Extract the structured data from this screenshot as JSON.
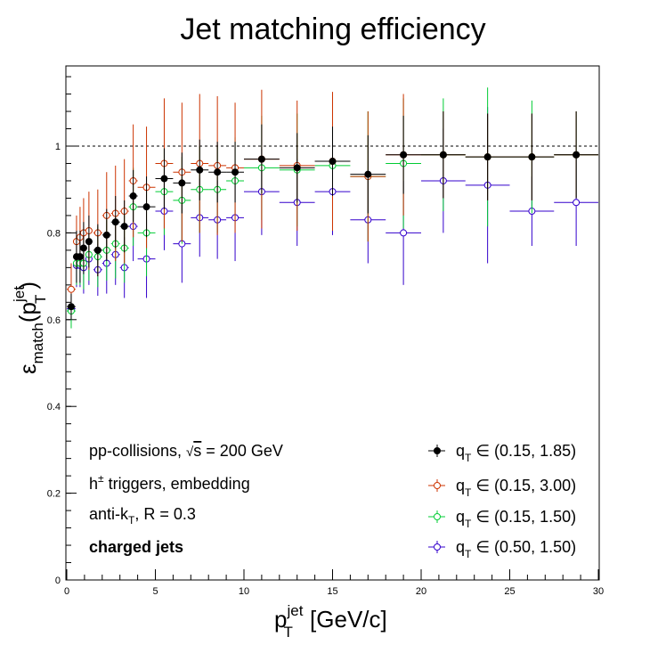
{
  "chart_data": {
    "type": "scatter",
    "title": "Jet matching efficiency",
    "xlabel": {
      "base": "p",
      "sup": "jet",
      "sub": "T",
      "suffix": " [GeV/c]"
    },
    "ylabel": {
      "base": "ε",
      "sub": "match",
      "open": "(p",
      "sup": "jet",
      "sub2": "T",
      "close": ")"
    },
    "xlim": [
      0,
      30
    ],
    "ylim": [
      0,
      1.2
    ],
    "xticks": [
      0,
      5,
      10,
      15,
      20,
      25,
      30
    ],
    "yticks": [
      0,
      0.2,
      0.4,
      0.6,
      0.8,
      1
    ],
    "xtick_labels": [
      "0",
      "5",
      "10",
      "15",
      "20",
      "25",
      "30"
    ],
    "ytick_labels": [
      "0",
      "0.2",
      "0.4",
      "0.6",
      "0.8",
      "1"
    ],
    "reference_line": {
      "y": 1,
      "style": "dashed"
    },
    "annotations": [
      {
        "text": "pp-collisions, √s = 200 GeV",
        "parts": [
          "pp-collisions, ",
          "√",
          "s",
          " = 200 GeV"
        ]
      },
      {
        "text": "h± triggers, embedding",
        "parts": [
          "h",
          "±",
          " triggers, embedding"
        ]
      },
      {
        "text": "anti-kT, R = 0.3",
        "parts": [
          "anti-k",
          "T",
          ", R = 0.3"
        ]
      },
      {
        "text": "charged jets",
        "bold": true
      }
    ],
    "legend_position": "bottom-right",
    "series": [
      {
        "name": "qT ∈ (0.15, 1.85)",
        "label_parts": [
          "q",
          "T",
          " ∈ (0.15, 1.85)"
        ],
        "color": "#000000",
        "marker": "filled-circle",
        "points": [
          {
            "x": 0.25,
            "y": 0.63,
            "xerr": 0.25,
            "yerr": 0.03
          },
          {
            "x": 0.55,
            "y": 0.745,
            "xerr": 0.1,
            "yerr": 0.06
          },
          {
            "x": 0.75,
            "y": 0.745,
            "xerr": 0.1,
            "yerr": 0.06
          },
          {
            "x": 0.95,
            "y": 0.765,
            "xerr": 0.1,
            "yerr": 0.06
          },
          {
            "x": 1.25,
            "y": 0.78,
            "xerr": 0.2,
            "yerr": 0.06
          },
          {
            "x": 1.75,
            "y": 0.76,
            "xerr": 0.25,
            "yerr": 0.06
          },
          {
            "x": 2.25,
            "y": 0.795,
            "xerr": 0.25,
            "yerr": 0.06
          },
          {
            "x": 2.75,
            "y": 0.825,
            "xerr": 0.25,
            "yerr": 0.06
          },
          {
            "x": 3.25,
            "y": 0.815,
            "xerr": 0.25,
            "yerr": 0.06
          },
          {
            "x": 3.75,
            "y": 0.885,
            "xerr": 0.25,
            "yerr": 0.06
          },
          {
            "x": 4.5,
            "y": 0.86,
            "xerr": 0.5,
            "yerr": 0.07
          },
          {
            "x": 5.5,
            "y": 0.925,
            "xerr": 0.5,
            "yerr": 0.07
          },
          {
            "x": 6.5,
            "y": 0.915,
            "xerr": 0.5,
            "yerr": 0.07
          },
          {
            "x": 7.5,
            "y": 0.945,
            "xerr": 0.5,
            "yerr": 0.07
          },
          {
            "x": 8.5,
            "y": 0.94,
            "xerr": 0.5,
            "yerr": 0.07
          },
          {
            "x": 9.5,
            "y": 0.94,
            "xerr": 0.5,
            "yerr": 0.07
          },
          {
            "x": 11,
            "y": 0.97,
            "xerr": 1,
            "yerr": 0.08
          },
          {
            "x": 13,
            "y": 0.95,
            "xerr": 1,
            "yerr": 0.08
          },
          {
            "x": 15,
            "y": 0.965,
            "xerr": 1,
            "yerr": 0.08
          },
          {
            "x": 17,
            "y": 0.935,
            "xerr": 1,
            "yerr": 0.09
          },
          {
            "x": 19,
            "y": 0.98,
            "xerr": 1,
            "yerr": 0.09
          },
          {
            "x": 21.25,
            "y": 0.98,
            "xerr": 1.25,
            "yerr": 0.1
          },
          {
            "x": 23.75,
            "y": 0.975,
            "xerr": 1.25,
            "yerr": 0.1
          },
          {
            "x": 26.25,
            "y": 0.975,
            "xerr": 1.25,
            "yerr": 0.1
          },
          {
            "x": 28.75,
            "y": 0.98,
            "xerr": 1.25,
            "yerr": 0.1
          }
        ]
      },
      {
        "name": "qT ∈ (0.15, 3.00)",
        "label_parts": [
          "q",
          "T",
          " ∈ (0.15, 3.00)"
        ],
        "color": "#cc3300",
        "marker": "open-circle",
        "points": [
          {
            "x": 0.25,
            "y": 0.67,
            "xerr": 0.25,
            "yerr": 0.06
          },
          {
            "x": 0.55,
            "y": 0.78,
            "xerr": 0.1,
            "yerr": 0.06
          },
          {
            "x": 0.75,
            "y": 0.79,
            "xerr": 0.1,
            "yerr": 0.07
          },
          {
            "x": 0.95,
            "y": 0.8,
            "xerr": 0.1,
            "yerr": 0.08
          },
          {
            "x": 1.25,
            "y": 0.805,
            "xerr": 0.2,
            "yerr": 0.09
          },
          {
            "x": 1.75,
            "y": 0.8,
            "xerr": 0.25,
            "yerr": 0.1
          },
          {
            "x": 2.25,
            "y": 0.84,
            "xerr": 0.25,
            "yerr": 0.1
          },
          {
            "x": 2.75,
            "y": 0.845,
            "xerr": 0.25,
            "yerr": 0.11
          },
          {
            "x": 3.25,
            "y": 0.85,
            "xerr": 0.25,
            "yerr": 0.12
          },
          {
            "x": 3.75,
            "y": 0.92,
            "xerr": 0.25,
            "yerr": 0.13
          },
          {
            "x": 4.5,
            "y": 0.905,
            "xerr": 0.5,
            "yerr": 0.14
          },
          {
            "x": 5.5,
            "y": 0.96,
            "xerr": 0.5,
            "yerr": 0.15
          },
          {
            "x": 6.5,
            "y": 0.94,
            "xerr": 0.5,
            "yerr": 0.16
          },
          {
            "x": 7.5,
            "y": 0.96,
            "xerr": 0.5,
            "yerr": 0.16
          },
          {
            "x": 8.5,
            "y": 0.955,
            "xerr": 0.5,
            "yerr": 0.16
          },
          {
            "x": 9.5,
            "y": 0.95,
            "xerr": 0.5,
            "yerr": 0.15
          },
          {
            "x": 11,
            "y": 0.97,
            "xerr": 1,
            "yerr": 0.16
          },
          {
            "x": 13,
            "y": 0.955,
            "xerr": 1,
            "yerr": 0.15
          },
          {
            "x": 15,
            "y": 0.965,
            "xerr": 1,
            "yerr": 0.16
          },
          {
            "x": 17,
            "y": 0.93,
            "xerr": 1,
            "yerr": 0.15
          },
          {
            "x": 19,
            "y": 0.98,
            "xerr": 1,
            "yerr": 0.14
          },
          {
            "x": 21.25,
            "y": 0.98,
            "xerr": 1.25,
            "yerr": 0.1
          },
          {
            "x": 23.75,
            "y": 0.975,
            "xerr": 1.25,
            "yerr": 0.1
          },
          {
            "x": 26.25,
            "y": 0.975,
            "xerr": 1.25,
            "yerr": 0.1
          },
          {
            "x": 28.75,
            "y": 0.98,
            "xerr": 1.25,
            "yerr": 0.1
          }
        ]
      },
      {
        "name": "qT ∈ (0.15, 1.50)",
        "label_parts": [
          "q",
          "T",
          " ∈ (0.15, 1.50)"
        ],
        "color": "#00cc33",
        "marker": "open-circle",
        "points": [
          {
            "x": 0.25,
            "y": 0.62,
            "xerr": 0.25,
            "yerr": 0.04
          },
          {
            "x": 0.55,
            "y": 0.73,
            "xerr": 0.1,
            "yerr": 0.05
          },
          {
            "x": 0.75,
            "y": 0.73,
            "xerr": 0.1,
            "yerr": 0.05
          },
          {
            "x": 0.95,
            "y": 0.73,
            "xerr": 0.1,
            "yerr": 0.06
          },
          {
            "x": 1.25,
            "y": 0.75,
            "xerr": 0.2,
            "yerr": 0.06
          },
          {
            "x": 1.75,
            "y": 0.745,
            "xerr": 0.25,
            "yerr": 0.07
          },
          {
            "x": 2.25,
            "y": 0.76,
            "xerr": 0.25,
            "yerr": 0.07
          },
          {
            "x": 2.75,
            "y": 0.775,
            "xerr": 0.25,
            "yerr": 0.08
          },
          {
            "x": 3.25,
            "y": 0.765,
            "xerr": 0.25,
            "yerr": 0.08
          },
          {
            "x": 3.75,
            "y": 0.86,
            "xerr": 0.25,
            "yerr": 0.09
          },
          {
            "x": 4.5,
            "y": 0.8,
            "xerr": 0.5,
            "yerr": 0.1
          },
          {
            "x": 5.5,
            "y": 0.895,
            "xerr": 0.5,
            "yerr": 0.1
          },
          {
            "x": 6.5,
            "y": 0.875,
            "xerr": 0.5,
            "yerr": 0.1
          },
          {
            "x": 7.5,
            "y": 0.9,
            "xerr": 0.5,
            "yerr": 0.1
          },
          {
            "x": 8.5,
            "y": 0.9,
            "xerr": 0.5,
            "yerr": 0.1
          },
          {
            "x": 9.5,
            "y": 0.92,
            "xerr": 0.5,
            "yerr": 0.1
          },
          {
            "x": 11,
            "y": 0.95,
            "xerr": 1,
            "yerr": 0.12
          },
          {
            "x": 13,
            "y": 0.945,
            "xerr": 1,
            "yerr": 0.13
          },
          {
            "x": 15,
            "y": 0.955,
            "xerr": 1,
            "yerr": 0.14
          },
          {
            "x": 17,
            "y": 0.93,
            "xerr": 1,
            "yerr": 0.15
          },
          {
            "x": 19,
            "y": 0.96,
            "xerr": 1,
            "yerr": 0.15
          },
          {
            "x": 21.25,
            "y": 0.98,
            "xerr": 1.25,
            "yerr": 0.13
          },
          {
            "x": 23.75,
            "y": 0.975,
            "xerr": 1.25,
            "yerr": 0.16
          },
          {
            "x": 26.25,
            "y": 0.975,
            "xerr": 1.25,
            "yerr": 0.13
          },
          {
            "x": 28.75,
            "y": 0.98,
            "xerr": 1.25,
            "yerr": 0.1
          }
        ]
      },
      {
        "name": "qT ∈ (0.50, 1.50)",
        "label_parts": [
          "q",
          "T",
          " ∈ (0.50, 1.50)"
        ],
        "color": "#3300cc",
        "marker": "open-circle",
        "points": [
          {
            "x": 0.25,
            "y": 0.625,
            "xerr": 0.25,
            "yerr": 0.03
          },
          {
            "x": 0.55,
            "y": 0.725,
            "xerr": 0.1,
            "yerr": 0.05
          },
          {
            "x": 0.75,
            "y": 0.725,
            "xerr": 0.1,
            "yerr": 0.05
          },
          {
            "x": 0.95,
            "y": 0.72,
            "xerr": 0.1,
            "yerr": 0.06
          },
          {
            "x": 1.25,
            "y": 0.74,
            "xerr": 0.2,
            "yerr": 0.06
          },
          {
            "x": 1.75,
            "y": 0.715,
            "xerr": 0.25,
            "yerr": 0.06
          },
          {
            "x": 2.25,
            "y": 0.73,
            "xerr": 0.25,
            "yerr": 0.07
          },
          {
            "x": 2.75,
            "y": 0.75,
            "xerr": 0.25,
            "yerr": 0.07
          },
          {
            "x": 3.25,
            "y": 0.72,
            "xerr": 0.25,
            "yerr": 0.07
          },
          {
            "x": 3.75,
            "y": 0.815,
            "xerr": 0.25,
            "yerr": 0.08
          },
          {
            "x": 4.5,
            "y": 0.74,
            "xerr": 0.5,
            "yerr": 0.09
          },
          {
            "x": 5.5,
            "y": 0.85,
            "xerr": 0.5,
            "yerr": 0.09
          },
          {
            "x": 6.5,
            "y": 0.775,
            "xerr": 0.5,
            "yerr": 0.09
          },
          {
            "x": 7.5,
            "y": 0.835,
            "xerr": 0.5,
            "yerr": 0.09
          },
          {
            "x": 8.5,
            "y": 0.83,
            "xerr": 0.5,
            "yerr": 0.09
          },
          {
            "x": 9.5,
            "y": 0.835,
            "xerr": 0.5,
            "yerr": 0.1
          },
          {
            "x": 11,
            "y": 0.895,
            "xerr": 1,
            "yerr": 0.1
          },
          {
            "x": 13,
            "y": 0.87,
            "xerr": 1,
            "yerr": 0.1
          },
          {
            "x": 15,
            "y": 0.895,
            "xerr": 1,
            "yerr": 0.1
          },
          {
            "x": 17,
            "y": 0.83,
            "xerr": 1,
            "yerr": 0.1
          },
          {
            "x": 19,
            "y": 0.8,
            "xerr": 1,
            "yerr": 0.12
          },
          {
            "x": 21.25,
            "y": 0.92,
            "xerr": 1.25,
            "yerr": 0.12
          },
          {
            "x": 23.75,
            "y": 0.91,
            "xerr": 1.25,
            "yerr": 0.18
          },
          {
            "x": 26.25,
            "y": 0.85,
            "xerr": 1.25,
            "yerr": 0.08
          },
          {
            "x": 28.75,
            "y": 0.87,
            "xerr": 1.25,
            "yerr": 0.1
          }
        ]
      }
    ]
  }
}
